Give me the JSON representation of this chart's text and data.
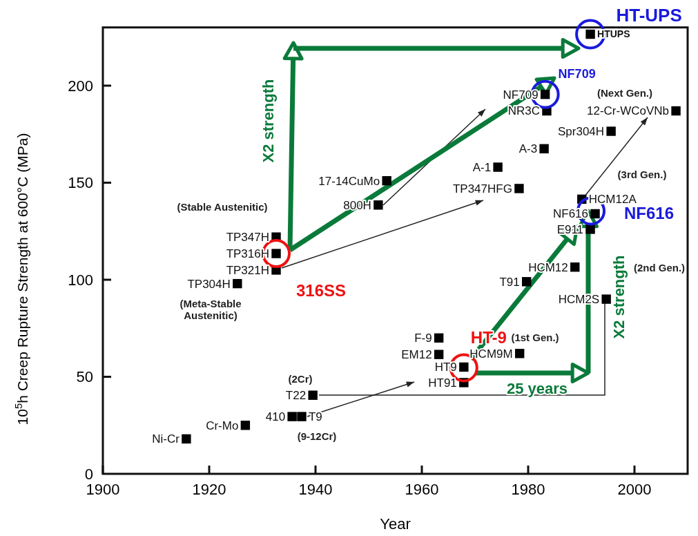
{
  "chart_data": {
    "type": "scatter",
    "xlabel": "Year",
    "ylabel": "10$^{5}$h Creep Rupture Strength at 600°C (MPa)",
    "xlim": [
      1900,
      2010
    ],
    "ylim": [
      0,
      230
    ],
    "xticks": [
      1900,
      1920,
      1940,
      1960,
      1980,
      2000
    ],
    "yticks": [
      0,
      50,
      100,
      150,
      200
    ],
    "grid": false,
    "marker": "square",
    "series": [
      {
        "name": "Ni-Cr",
        "color": "#000000",
        "x": [
          1915.7
        ],
        "values": [
          18
        ]
      },
      {
        "name": "Cr-Mo",
        "color": "#000000",
        "x": [
          1926.8
        ],
        "values": [
          25
        ]
      },
      {
        "name": "410",
        "color": "#000000",
        "x": [
          1935.6
        ],
        "values": [
          29.5
        ]
      },
      {
        "name": "T9",
        "color": "#000000",
        "x": [
          1937.4
        ],
        "values": [
          29.5
        ]
      },
      {
        "name": "T22",
        "color": "#000000",
        "x": [
          1939.5
        ],
        "values": [
          40.5
        ]
      },
      {
        "name": "TP304H",
        "color": "#000000",
        "x": [
          1925.3
        ],
        "values": [
          98
        ]
      },
      {
        "name": "TP347H",
        "color": "#000000",
        "x": [
          1932.6
        ],
        "values": [
          122
        ]
      },
      {
        "name": "TP316H",
        "color": "#000000",
        "x": [
          1932.6
        ],
        "values": [
          113.5
        ]
      },
      {
        "name": "TP321H",
        "color": "#000000",
        "x": [
          1932.6
        ],
        "values": [
          105
        ]
      },
      {
        "name": "17-14CuMo",
        "color": "#000000",
        "x": [
          1953.4
        ],
        "values": [
          151
        ]
      },
      {
        "name": "800H",
        "color": "#000000",
        "x": [
          1951.8
        ],
        "values": [
          138.5
        ]
      },
      {
        "name": "TP347HFG",
        "color": "#000000",
        "x": [
          1978.3
        ],
        "values": [
          147
        ]
      },
      {
        "name": "A-1",
        "color": "#000000",
        "x": [
          1974.3
        ],
        "values": [
          158
        ]
      },
      {
        "name": "A-3",
        "color": "#000000",
        "x": [
          1983
        ],
        "values": [
          167.5
        ]
      },
      {
        "name": "Spr304H",
        "color": "#000000",
        "x": [
          1995.6
        ],
        "values": [
          176.5
        ]
      },
      {
        "name": "NF709",
        "color": "#000000",
        "x": [
          1983.2
        ],
        "values": [
          195.5
        ]
      },
      {
        "name": "NR3C",
        "color": "#000000",
        "x": [
          1983.5
        ],
        "values": [
          187
        ]
      },
      {
        "name": "12-Cr-WCoVNb",
        "color": "#000000",
        "x": [
          2007.8
        ],
        "values": [
          187
        ]
      },
      {
        "name": "HCM12A",
        "color": "#000000",
        "x": [
          1990.1
        ],
        "values": [
          141.5
        ]
      },
      {
        "name": "NF616",
        "color": "#000000",
        "x": [
          1992.6
        ],
        "values": [
          134
        ]
      },
      {
        "name": "E911",
        "color": "#000000",
        "x": [
          1991.7
        ],
        "values": [
          126
        ]
      },
      {
        "name": "HCM12",
        "color": "#000000",
        "x": [
          1988.8
        ],
        "values": [
          106.5
        ]
      },
      {
        "name": "T91",
        "color": "#000000",
        "x": [
          1979.7
        ],
        "values": [
          99
        ]
      },
      {
        "name": "HCM2S",
        "color": "#000000",
        "x": [
          1994.7
        ],
        "values": [
          90
        ]
      },
      {
        "name": "F-9",
        "color": "#000000",
        "x": [
          1963.2
        ],
        "values": [
          70
        ]
      },
      {
        "name": "EM12",
        "color": "#000000",
        "x": [
          1963.2
        ],
        "values": [
          61.5
        ]
      },
      {
        "name": "HCM9M",
        "color": "#000000",
        "x": [
          1978.4
        ],
        "values": [
          62
        ]
      },
      {
        "name": "HT9",
        "color": "#000000",
        "x": [
          1967.9
        ],
        "values": [
          55
        ]
      },
      {
        "name": "HT91",
        "color": "#000000",
        "x": [
          1967.9
        ],
        "values": [
          47
        ]
      },
      {
        "name": "HTUPS",
        "color": "#000000",
        "x": [
          1991.7
        ],
        "values": [
          226.5
        ]
      }
    ],
    "annotations": [
      "(Stable Austenitic)",
      "(Meta-Stable Austenitic)",
      "(2Cr)",
      "(9-12Cr)",
      "(1st Gen.)",
      "(2nd Gen.)",
      "(3rd Gen.)",
      "(Next Gen.)",
      {
        "text": "316SS",
        "x": 1932.6,
        "y": 113.5
      },
      {
        "text": "HT-9",
        "x": 1967.9,
        "y": 55
      },
      {
        "text": "NF709",
        "x": 1983.2,
        "y": 195.5
      },
      {
        "text": "NF616",
        "x": 1992.6,
        "y": 134
      },
      {
        "text": "HT-UPS",
        "x": 1991.7,
        "y": 226.5
      },
      "X2 strength",
      "X2 strength",
      "25 years"
    ]
  }
}
